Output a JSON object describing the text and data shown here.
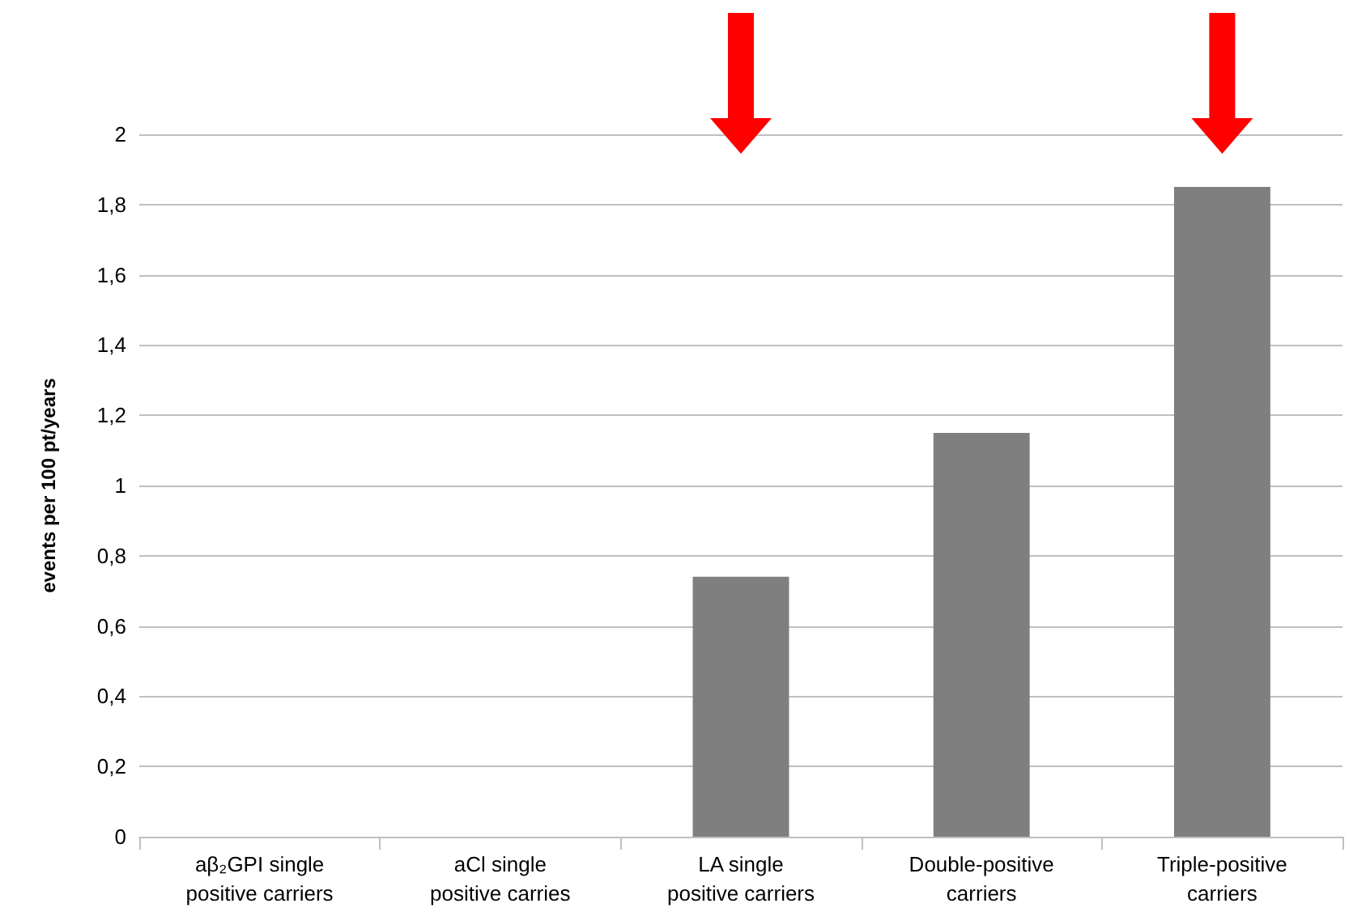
{
  "chart_data": {
    "type": "bar",
    "ylabel": "events per 100 pt/years",
    "categories": [
      "aβ₂GPI single positive carriers",
      "aCl single positive carries",
      "LA single positive carriers",
      "Double-positive carriers",
      "Triple-positive carriers"
    ],
    "values": [
      0,
      0,
      0.74,
      1.15,
      1.85
    ],
    "color": "#7f7f7f",
    "ylim": [
      0,
      2
    ],
    "yticks": [
      0,
      {
        "value": 0.2,
        "label": "0,2"
      },
      {
        "value": 0.4,
        "label": "0,4"
      },
      {
        "value": 0.6,
        "label": "0,6"
      },
      {
        "value": 0.8,
        "label": "0,8"
      },
      1,
      {
        "value": 1.2,
        "label": "1,2"
      },
      {
        "value": 1.4,
        "label": "1,4"
      },
      {
        "value": 1.6,
        "label": "1,6"
      },
      {
        "value": 1.8,
        "label": "1,8"
      },
      2
    ],
    "grid": "y"
  }
}
